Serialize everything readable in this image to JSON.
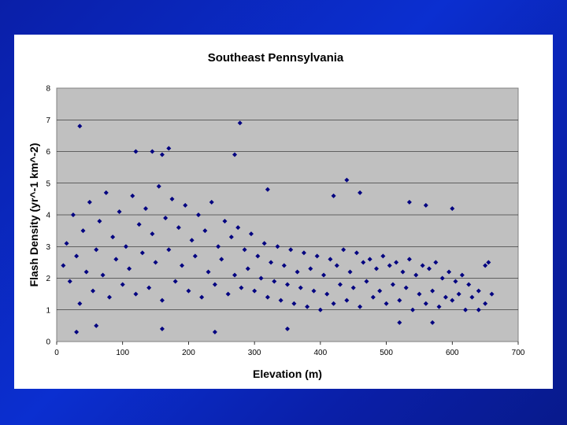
{
  "chart_data": {
    "type": "scatter",
    "title": "Southeast Pennsylvania",
    "xlabel": "Elevation (m)",
    "ylabel": "Flash Density (yr^-1 km^-2)",
    "xlim": [
      0,
      700
    ],
    "ylim": [
      0,
      8
    ],
    "xticks": [
      0,
      100,
      200,
      300,
      400,
      500,
      600,
      700
    ],
    "yticks": [
      0,
      1,
      2,
      3,
      4,
      5,
      6,
      7,
      8
    ],
    "grid": "horizontal",
    "legend": "none",
    "colors": {
      "plot_bg": "#c0c0c0",
      "marker": "#000080",
      "gridline": "#000000"
    },
    "marker": "diamond",
    "series": [
      {
        "points": [
          [
            10,
            2.4
          ],
          [
            15,
            3.1
          ],
          [
            20,
            1.9
          ],
          [
            25,
            4.0
          ],
          [
            30,
            2.7
          ],
          [
            35,
            1.2
          ],
          [
            40,
            3.5
          ],
          [
            45,
            2.2
          ],
          [
            50,
            4.4
          ],
          [
            55,
            1.6
          ],
          [
            60,
            2.9
          ],
          [
            65,
            3.8
          ],
          [
            70,
            2.1
          ],
          [
            75,
            4.7
          ],
          [
            80,
            1.4
          ],
          [
            85,
            3.3
          ],
          [
            90,
            2.6
          ],
          [
            95,
            4.1
          ],
          [
            100,
            1.8
          ],
          [
            105,
            3.0
          ],
          [
            110,
            2.3
          ],
          [
            115,
            4.6
          ],
          [
            120,
            1.5
          ],
          [
            125,
            3.7
          ],
          [
            130,
            2.8
          ],
          [
            135,
            4.2
          ],
          [
            140,
            1.7
          ],
          [
            145,
            3.4
          ],
          [
            150,
            2.5
          ],
          [
            155,
            4.9
          ],
          [
            160,
            1.3
          ],
          [
            165,
            3.9
          ],
          [
            170,
            2.9
          ],
          [
            175,
            4.5
          ],
          [
            180,
            1.9
          ],
          [
            185,
            3.6
          ],
          [
            190,
            2.4
          ],
          [
            195,
            4.3
          ],
          [
            200,
            1.6
          ],
          [
            205,
            3.2
          ],
          [
            210,
            2.7
          ],
          [
            215,
            4.0
          ],
          [
            220,
            1.4
          ],
          [
            225,
            3.5
          ],
          [
            230,
            2.2
          ],
          [
            235,
            4.4
          ],
          [
            240,
            1.8
          ],
          [
            245,
            3.0
          ],
          [
            250,
            2.6
          ],
          [
            255,
            3.8
          ],
          [
            260,
            1.5
          ],
          [
            265,
            3.3
          ],
          [
            270,
            2.1
          ],
          [
            275,
            3.6
          ],
          [
            280,
            1.7
          ],
          [
            285,
            2.9
          ],
          [
            290,
            2.3
          ],
          [
            295,
            3.4
          ],
          [
            300,
            1.6
          ],
          [
            305,
            2.7
          ],
          [
            310,
            2.0
          ],
          [
            315,
            3.1
          ],
          [
            320,
            1.4
          ],
          [
            325,
            2.5
          ],
          [
            330,
            1.9
          ],
          [
            335,
            3.0
          ],
          [
            340,
            1.3
          ],
          [
            345,
            2.4
          ],
          [
            350,
            1.8
          ],
          [
            355,
            2.9
          ],
          [
            360,
            1.2
          ],
          [
            365,
            2.2
          ],
          [
            370,
            1.7
          ],
          [
            375,
            2.8
          ],
          [
            380,
            1.1
          ],
          [
            385,
            2.3
          ],
          [
            390,
            1.6
          ],
          [
            395,
            2.7
          ],
          [
            400,
            1.0
          ],
          [
            405,
            2.1
          ],
          [
            410,
            1.5
          ],
          [
            415,
            2.6
          ],
          [
            420,
            1.2
          ],
          [
            425,
            2.4
          ],
          [
            430,
            1.8
          ],
          [
            435,
            2.9
          ],
          [
            440,
            1.3
          ],
          [
            445,
            2.2
          ],
          [
            450,
            1.7
          ],
          [
            455,
            2.8
          ],
          [
            460,
            1.1
          ],
          [
            465,
            2.5
          ],
          [
            470,
            1.9
          ],
          [
            475,
            2.6
          ],
          [
            480,
            1.4
          ],
          [
            485,
            2.3
          ],
          [
            490,
            1.6
          ],
          [
            495,
            2.7
          ],
          [
            500,
            1.2
          ],
          [
            505,
            2.4
          ],
          [
            510,
            1.8
          ],
          [
            515,
            2.5
          ],
          [
            520,
            1.3
          ],
          [
            525,
            2.2
          ],
          [
            530,
            1.7
          ],
          [
            535,
            2.6
          ],
          [
            540,
            1.0
          ],
          [
            545,
            2.1
          ],
          [
            550,
            1.5
          ],
          [
            555,
            2.4
          ],
          [
            560,
            1.2
          ],
          [
            565,
            2.3
          ],
          [
            570,
            1.6
          ],
          [
            575,
            2.5
          ],
          [
            580,
            1.1
          ],
          [
            585,
            2.0
          ],
          [
            590,
            1.4
          ],
          [
            595,
            2.2
          ],
          [
            600,
            1.3
          ],
          [
            605,
            1.9
          ],
          [
            610,
            1.5
          ],
          [
            615,
            2.1
          ],
          [
            620,
            1.0
          ],
          [
            625,
            1.8
          ],
          [
            630,
            1.4
          ],
          [
            640,
            1.6
          ],
          [
            650,
            1.2
          ],
          [
            660,
            1.5
          ],
          [
            35,
            6.8
          ],
          [
            278,
            6.9
          ],
          [
            170,
            6.1
          ],
          [
            145,
            6.0
          ],
          [
            120,
            6.0
          ],
          [
            160,
            5.9
          ],
          [
            270,
            5.9
          ],
          [
            440,
            5.1
          ],
          [
            320,
            4.8
          ],
          [
            420,
            4.6
          ],
          [
            460,
            4.7
          ],
          [
            535,
            4.4
          ],
          [
            560,
            4.3
          ],
          [
            600,
            4.2
          ],
          [
            30,
            0.3
          ],
          [
            60,
            0.5
          ],
          [
            160,
            0.4
          ],
          [
            240,
            0.3
          ],
          [
            350,
            0.4
          ],
          [
            520,
            0.6
          ],
          [
            570,
            0.6
          ],
          [
            640,
            1.0
          ],
          [
            650,
            2.4
          ],
          [
            655,
            2.5
          ]
        ]
      }
    ]
  }
}
